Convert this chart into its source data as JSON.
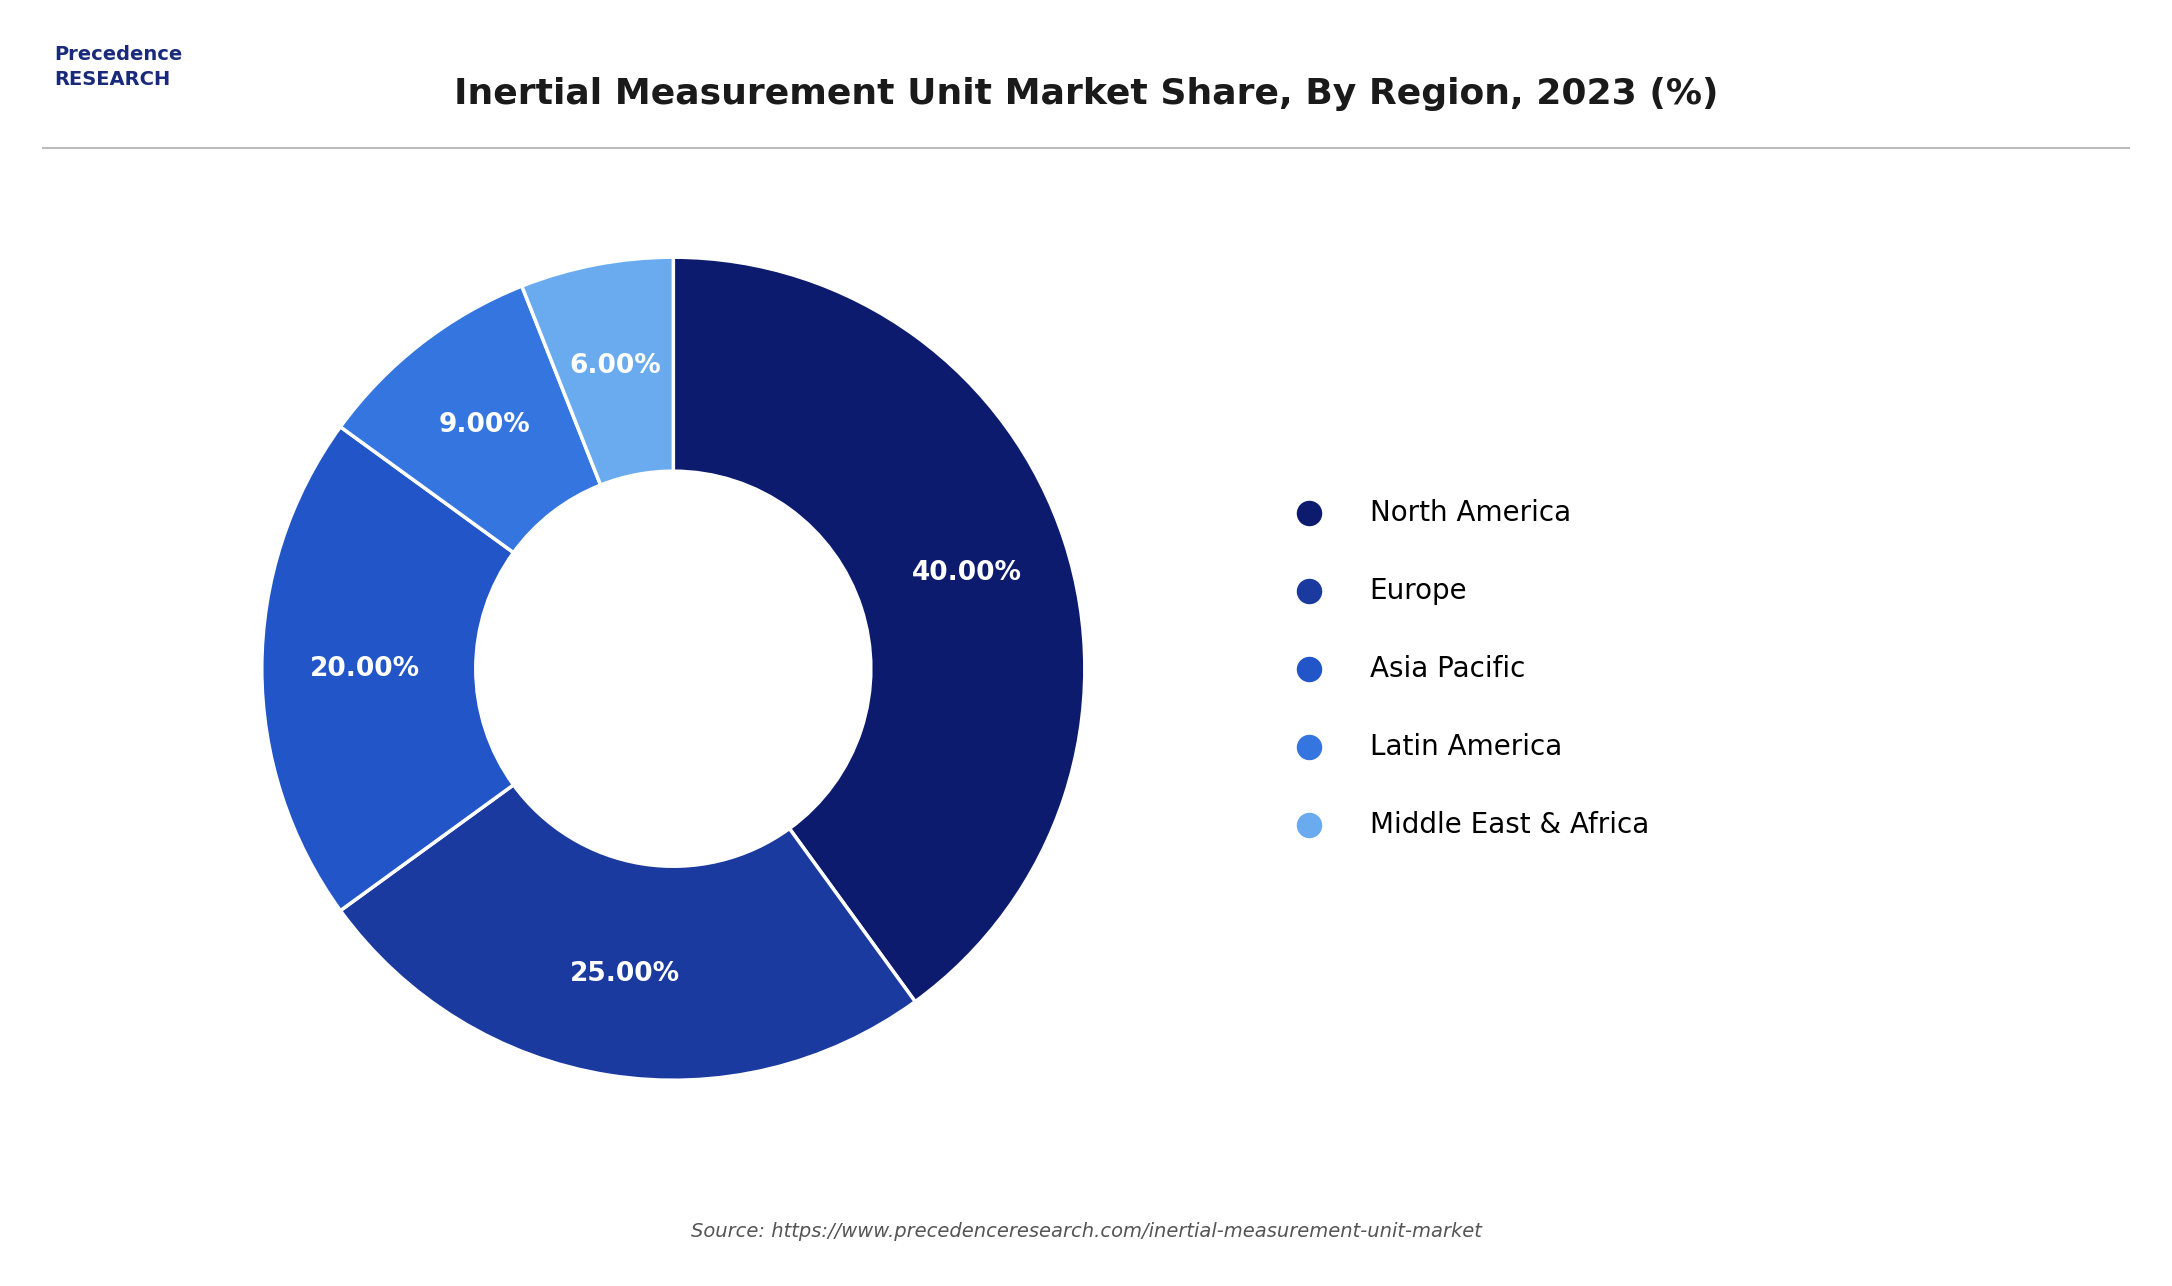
{
  "title": "Inertial Measurement Unit Market Share, By Region, 2023 (%)",
  "labels": [
    "North America",
    "Europe",
    "Asia Pacific",
    "Latin America",
    "Middle East & Africa"
  ],
  "values": [
    40.0,
    25.0,
    20.0,
    9.0,
    6.0
  ],
  "colors": [
    "#0d1b6e",
    "#1a3a9f",
    "#2255c8",
    "#3575e0",
    "#6aabf0"
  ],
  "pct_labels": [
    "40.00%",
    "25.00%",
    "20.00%",
    "9.00%",
    "6.00%"
  ],
  "background_color": "#ffffff",
  "source_text": "Source: https://www.precedenceresearch.com/inertial-measurement-unit-market",
  "title_fontsize": 26,
  "label_fontsize": 19,
  "legend_fontsize": 20
}
